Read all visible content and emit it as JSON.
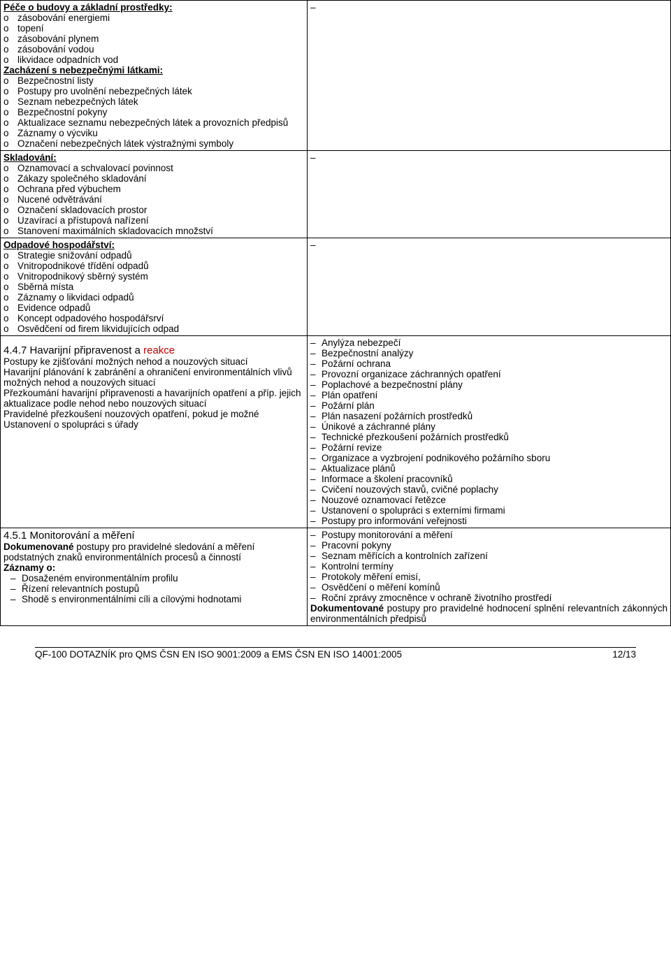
{
  "sections": {
    "budovy": {
      "title": "Péče o budovy a základní prostředky:",
      "items": [
        "zásobování energiemi",
        "topení",
        "zásobování plynem",
        "zásobování vodou",
        "likvidace odpadních vod"
      ]
    },
    "latky": {
      "title": "Zacházení s nebezpečnými látkami:",
      "items": [
        "Bezpečnostní listy",
        "Postupy pro uvolnění nebezpečných látek",
        "Seznam nebezpečných látek",
        "Bezpečnostní pokyny",
        "Aktualizace seznamu nebezpečných látek a provozních předpisů",
        "Záznamy o výcviku",
        "Označení nebezpečných látek výstražnými symboly"
      ]
    },
    "skladovani": {
      "title": "Skladování:",
      "items": [
        "Oznamovací a schvalovací povinnost",
        "Zákazy společného skladování",
        "Ochrana před výbuchem",
        "Nucené odvětrávání",
        "Označení skladovacích prostor",
        "Uzavírací a přístupová nařízení",
        "Stanovení maximálních skladovacích množství"
      ]
    },
    "odpadove": {
      "title": "Odpadové hospodářství:",
      "items": [
        "Strategie snižování odpadů",
        "Vnitropodnikové třídění odpadů",
        "Vnitropodnikový sběrný systém",
        "Sběrná místa",
        "Záznamy o likvidaci odpadů",
        "Evidence odpadů",
        "Koncept odpadového hospodářsrví",
        "Osvědčení od firem likvidujících odpad"
      ]
    },
    "havarijni": {
      "number": "4.4.7 Havarijní připravenost a ",
      "reakce": "reakce",
      "body": [
        "Postupy ke zjišťování možných nehod a nouzových situací",
        "Havarijní plánování k zabránění a ohraničení environmentálních vlivů možných nehod a nouzových situací",
        "Přezkoumání havarijní připravenosti a havarijních opatření a příp. jejich aktualizace podle nehod nebo nouzových situací",
        "Pravidelné přezkoušení nouzových opatření, pokud je možné",
        "Ustanovení o spolupráci s úřady"
      ],
      "right": [
        "Anylýza nebezpečí",
        "Bezpečnostní analýzy",
        "Požární ochrana",
        "Provozní organizace záchranných opatření",
        "Poplachové a bezpečnostní plány",
        "Plán opatření",
        "Požární plán",
        "Plán nasazení požárních prostředků",
        "Únikové a záchranné plány",
        "Technické přezkoušení požárních prostředků",
        "Požární revize",
        "Organizace a vyzbrojení podnikového požárního sboru",
        "Aktualizace plánů",
        "Informace a školení pracovníků",
        "Cvičení nouzových stavů, cvičné poplachy",
        "Nouzové oznamovací řetězce",
        "Ustanovení o spolupráci s externími firmami",
        "Postupy pro informování veřejnosti"
      ]
    },
    "monitorovani": {
      "number": "4.5.1 Monitorování a měření",
      "intro_bold": "Dokumenované",
      "intro_rest": " postupy pro pravidelné sledování a měření podstatných znaků environmentálních procesů a činností",
      "zaznamy_label": "Záznamy o:",
      "zaznamy": [
        "Dosaženém environmentálním profilu",
        "Řízení relevantních postupů",
        "Shodě s environmentálními cíli a cílovými hodnotami"
      ],
      "right": [
        "Postupy monitorování a měření",
        "Pracovní pokyny",
        "Seznam měřících a kontrolních zařízení",
        "Kontrolní termíny",
        "Protokoly měření emisí,",
        "Osvědčení o měření komínů",
        "Roční zprávy zmocněnce v ochraně životního prostředí"
      ],
      "right_doc_bold": "Dokumentované",
      "right_doc_rest": " postupy pro pravidelné hodnocení splnění relevantních zákonných environmentálních předpisů"
    }
  },
  "footer": {
    "text": "QF-100 DOTAZNÍK pro QMS ČSN EN ISO 9001:2009 a  EMS ČSN EN ISO 14001:2005",
    "page": "12/13"
  }
}
